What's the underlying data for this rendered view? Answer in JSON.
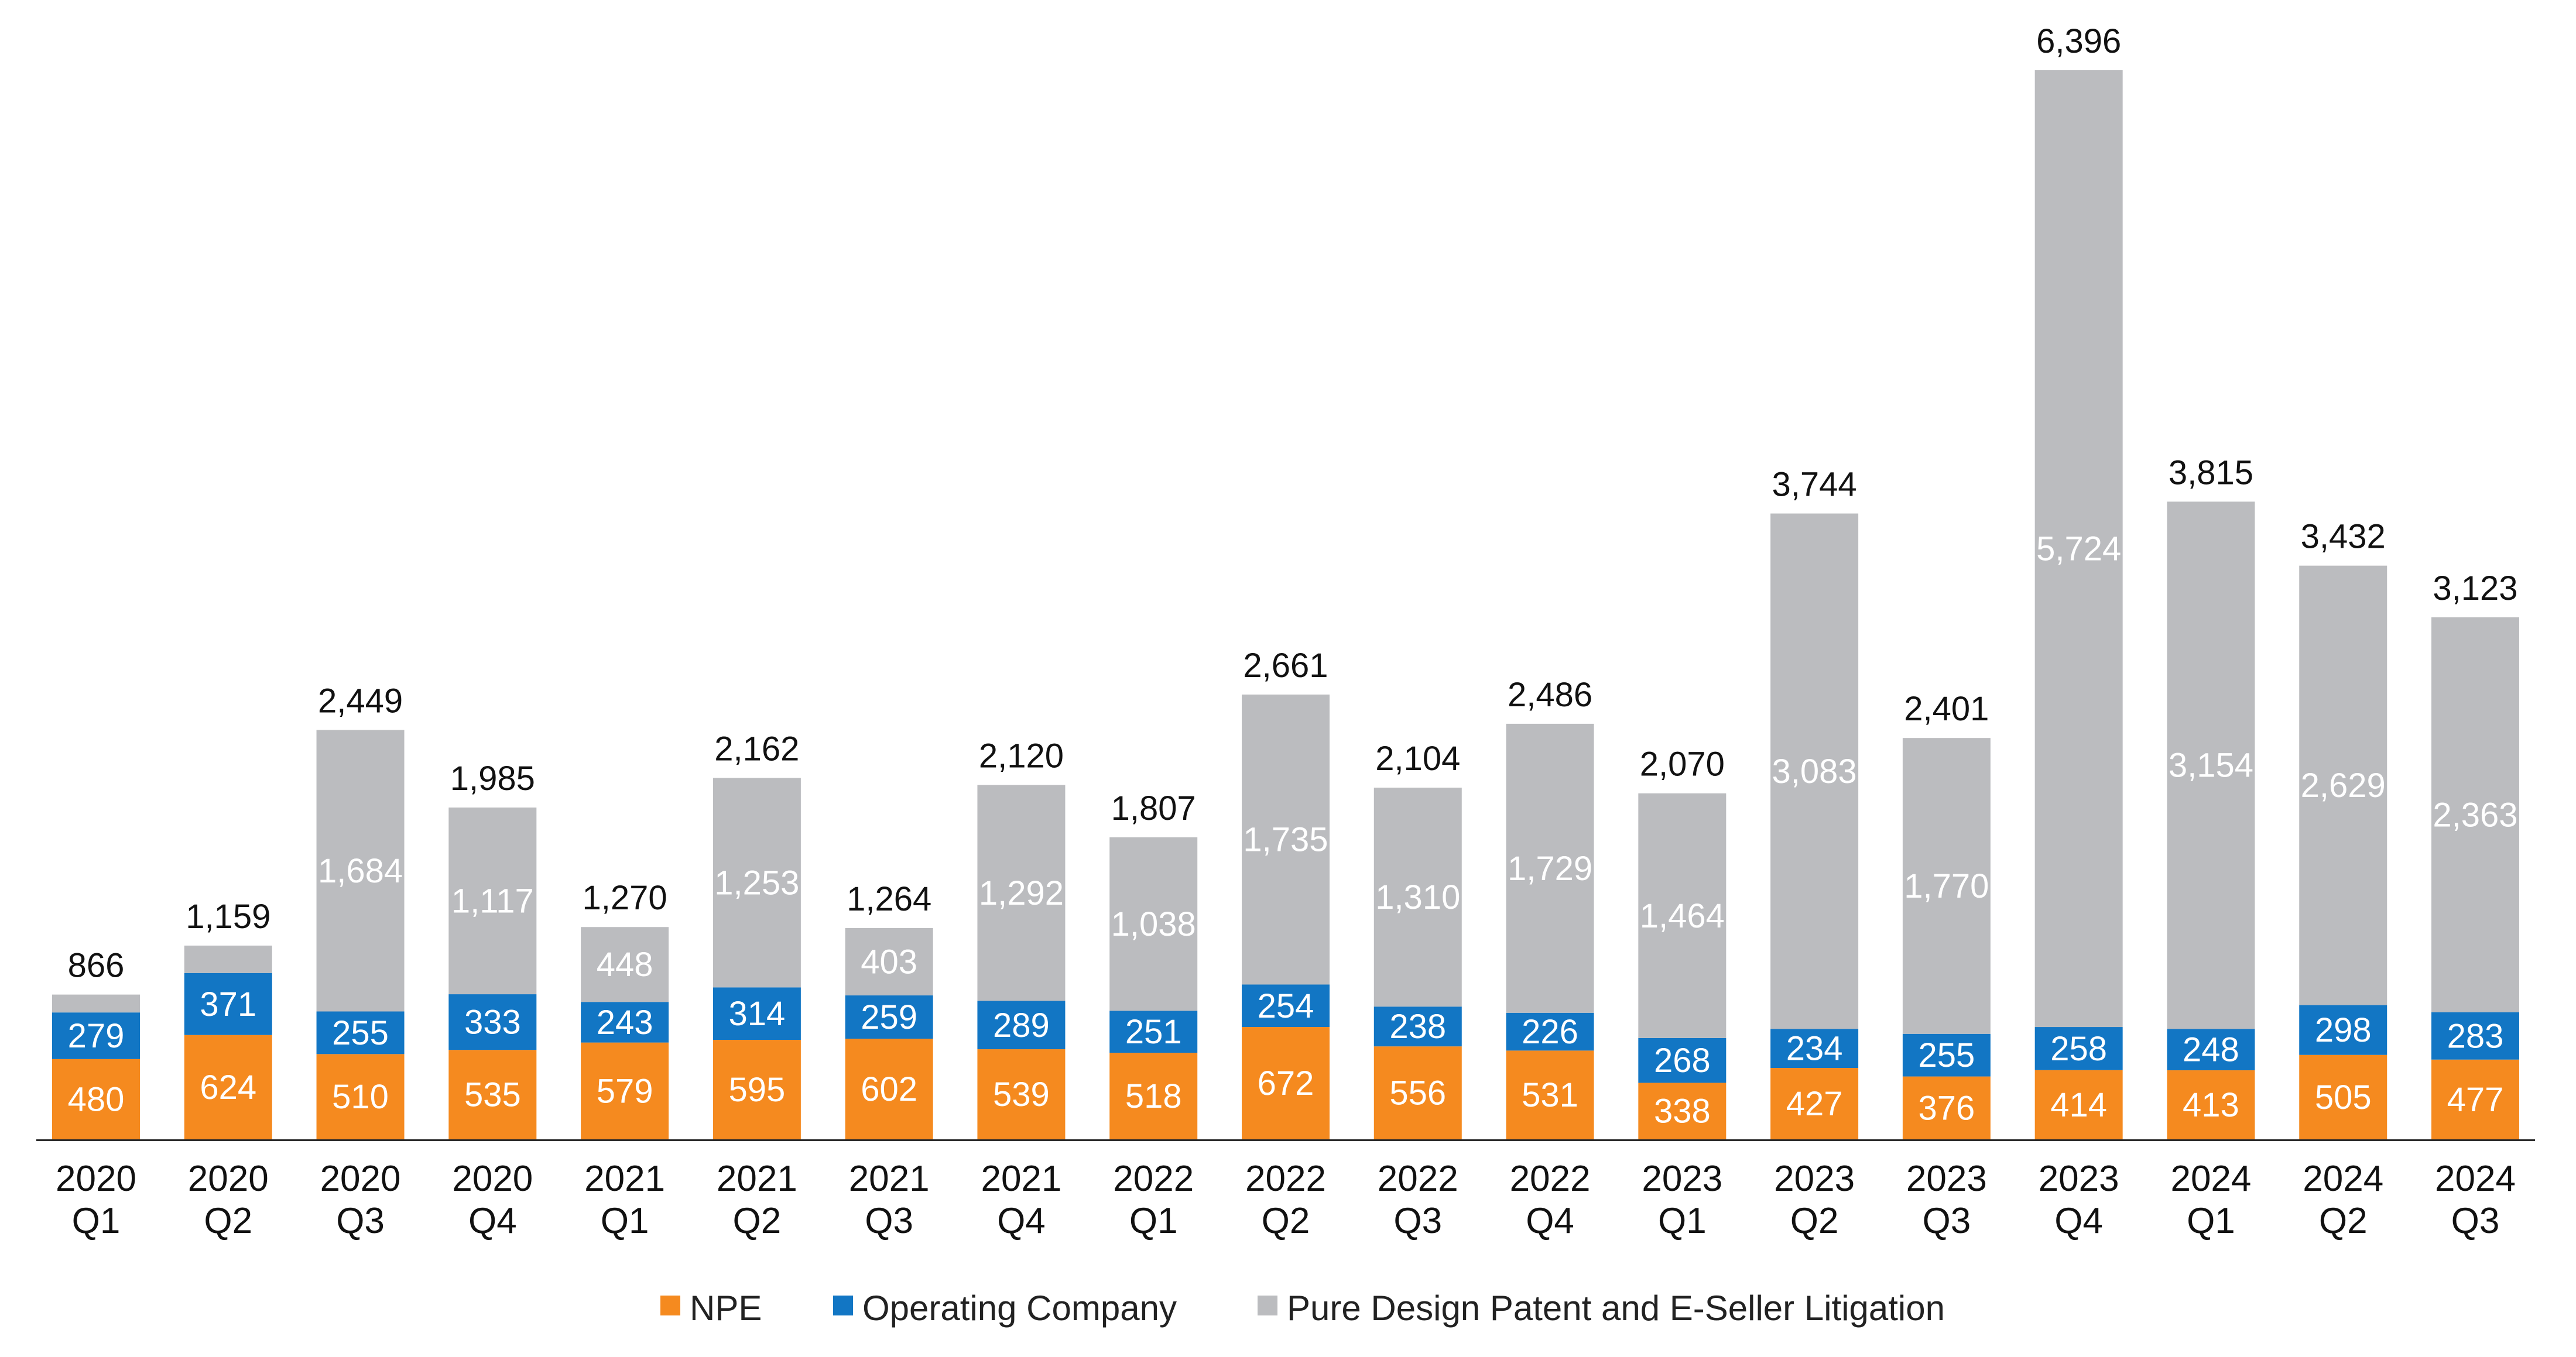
{
  "chart_data": {
    "type": "bar",
    "stacked": true,
    "categories": [
      [
        "2020",
        "Q1"
      ],
      [
        "2020",
        "Q2"
      ],
      [
        "2020",
        "Q3"
      ],
      [
        "2020",
        "Q4"
      ],
      [
        "2021",
        "Q1"
      ],
      [
        "2021",
        "Q2"
      ],
      [
        "2021",
        "Q3"
      ],
      [
        "2021",
        "Q4"
      ],
      [
        "2022",
        "Q1"
      ],
      [
        "2022",
        "Q2"
      ],
      [
        "2022",
        "Q3"
      ],
      [
        "2022",
        "Q4"
      ],
      [
        "2023",
        "Q1"
      ],
      [
        "2023",
        "Q2"
      ],
      [
        "2023",
        "Q3"
      ],
      [
        "2023",
        "Q4"
      ],
      [
        "2024",
        "Q1"
      ],
      [
        "2024",
        "Q2"
      ],
      [
        "2024",
        "Q3"
      ]
    ],
    "series": [
      {
        "name": "NPE",
        "color": "#F58A1F",
        "values": [
          480,
          624,
          510,
          535,
          579,
          595,
          602,
          539,
          518,
          672,
          556,
          531,
          338,
          427,
          376,
          414,
          413,
          505,
          477
        ]
      },
      {
        "name": "Operating Company",
        "color": "#1276C4",
        "values": [
          279,
          371,
          255,
          333,
          243,
          314,
          259,
          289,
          251,
          254,
          238,
          226,
          268,
          234,
          255,
          258,
          248,
          298,
          283
        ]
      },
      {
        "name": "Pure Design Patent and E-Seller Litigation",
        "color": "#BBBCBF",
        "values": [
          107,
          164,
          1684,
          1117,
          448,
          1253,
          403,
          1292,
          1038,
          1735,
          1310,
          1729,
          1464,
          3083,
          1770,
          5724,
          3154,
          2629,
          2363
        ],
        "labels": [
          "",
          "",
          "1,684",
          "1,117",
          "448",
          "1,253",
          "403",
          "1,292",
          "1,038",
          "1,735",
          "1,310",
          "1,729",
          "1,464",
          "3,083",
          "1,770",
          "5,724",
          "3,154",
          "2,629",
          "2,363"
        ]
      }
    ],
    "totals": [
      "866",
      "1,159",
      "2,449",
      "1,985",
      "1,270",
      "2,162",
      "1,264",
      "2,120",
      "1,807",
      "2,661",
      "2,104",
      "2,486",
      "2,070",
      "3,744",
      "2,401",
      "6,396",
      "3,815",
      "3,432",
      "3,123"
    ],
    "total_values": [
      866,
      1159,
      2449,
      1985,
      1270,
      2162,
      1264,
      2120,
      1807,
      2661,
      2104,
      2486,
      2070,
      3744,
      2401,
      6396,
      3815,
      3432,
      3123
    ],
    "ylim": [
      0,
      6396
    ],
    "grid": false,
    "legend_position": "bottom-center",
    "title": "",
    "xlabel": "",
    "ylabel": ""
  }
}
